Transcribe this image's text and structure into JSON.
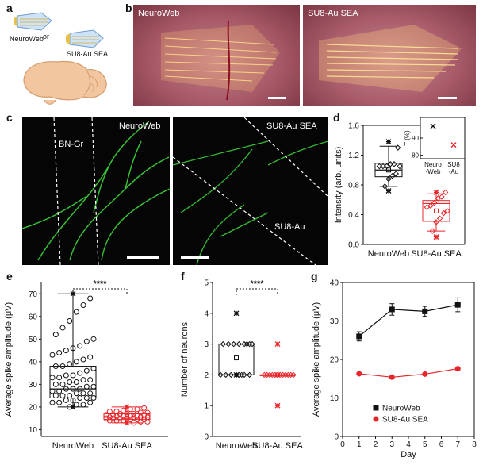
{
  "panel_labels": {
    "a": "a",
    "b": "b",
    "c": "c",
    "d": "d",
    "e": "e",
    "f": "f",
    "g": "g"
  },
  "panel_a": {
    "label_neuroweb": "NeuroWeb",
    "label_or": "or",
    "label_su8": "SU8-Au SEA"
  },
  "panel_b": {
    "left_label": "NeuroWeb",
    "right_label": "SU8-Au SEA"
  },
  "panel_c": {
    "left_label": "NeuroWeb",
    "right_label": "SU8-Au SEA",
    "bn_gr": "BN-Gr",
    "su8_au": "SU8-Au"
  },
  "colors": {
    "black": "#111111",
    "red": "#e8262a",
    "green": "#3ddc3a",
    "tissue": "#b86a78"
  },
  "chart_data": [
    {
      "id": "d",
      "type": "box",
      "ylabel": "Intensity (arb. units)",
      "categories": [
        "NeuroWeb",
        "SU8-Au SEA"
      ],
      "yticks": [
        "0.0",
        "0.4",
        "0.8",
        "1.2",
        "1.6"
      ],
      "ylim": [
        0,
        1.6
      ],
      "boxes": [
        {
          "name": "NeuroWeb",
          "color": "#111111",
          "q1": 0.91,
          "median": 1.0,
          "q3": 1.09,
          "mean": 1.0,
          "whisker_low": 0.78,
          "whisker_high": 1.32,
          "points": [
            1.38,
            1.3,
            1.08,
            1.08,
            1.05,
            1.05,
            1.05,
            1.05,
            0.95,
            0.92,
            0.88,
            0.78,
            0.72
          ]
        },
        {
          "name": "SU8-Au SEA",
          "color": "#e8262a",
          "q1": 0.31,
          "median": 0.55,
          "q3": 0.59,
          "mean": 0.45,
          "whisker_low": 0.18,
          "whisker_high": 0.68,
          "points": [
            0.7,
            0.7,
            0.64,
            0.62,
            0.56,
            0.52,
            0.5,
            0.45,
            0.42,
            0.35,
            0.3,
            0.18,
            0.1
          ]
        }
      ],
      "inset": {
        "ylabel": "T (%)",
        "yticks": [
          "80",
          "90"
        ],
        "ylim": [
          78,
          102
        ],
        "categories": [
          "Neuro\n-Web",
          "SU8\n-Au"
        ],
        "points": [
          {
            "category": "Neuro-Web",
            "value": 97,
            "color": "#111111"
          },
          {
            "category": "SU8-Au",
            "value": 86,
            "color": "#e8262a"
          }
        ]
      }
    },
    {
      "id": "e",
      "type": "box",
      "ylabel": "Average spike amplitude (μV)",
      "categories": [
        "NeuroWeb",
        "SU8-Au SEA"
      ],
      "yticks": [
        "10",
        "20",
        "30",
        "40",
        "50",
        "60",
        "70"
      ],
      "ylim": [
        7,
        75
      ],
      "significance": "****",
      "boxes": [
        {
          "name": "NeuroWeb",
          "color": "#111111",
          "q1": 24,
          "median": 28,
          "q3": 38,
          "mean": 30,
          "whisker_low": 20,
          "whisker_high": 70,
          "points": [
            70,
            68,
            65,
            62,
            58,
            55,
            52,
            50,
            49,
            47,
            46,
            45,
            44,
            43,
            42,
            41,
            40,
            39,
            38,
            38,
            37,
            36,
            35,
            34,
            34,
            33,
            33,
            32,
            32,
            31,
            31,
            30,
            30,
            29,
            29,
            28,
            28,
            28,
            27,
            27,
            26,
            26,
            26,
            25,
            25,
            25,
            24,
            24,
            24,
            23,
            23,
            22,
            22,
            22,
            21,
            21,
            20,
            20
          ]
        },
        {
          "name": "SU8-Au SEA",
          "color": "#e8262a",
          "q1": 14.5,
          "median": 15.5,
          "q3": 17,
          "mean": 15.8,
          "whisker_low": 13,
          "whisker_high": 20,
          "points": [
            20,
            19.5,
            19,
            19,
            18.5,
            18,
            18,
            17.5,
            17.5,
            17,
            17,
            17,
            16.5,
            16.5,
            16.5,
            16,
            16,
            16,
            16,
            15.5,
            15.5,
            15.5,
            15.5,
            15,
            15,
            15,
            15,
            14.5,
            14.5,
            14.5,
            14,
            14,
            14,
            13.5,
            13.5,
            13,
            13
          ]
        }
      ]
    },
    {
      "id": "f",
      "type": "box",
      "ylabel": "Number of neurons",
      "categories": [
        "NeuroWeb",
        "SU8-Au SEA"
      ],
      "yticks": [
        "0",
        "1",
        "2",
        "3",
        "4",
        "5"
      ],
      "ylim": [
        0,
        5
      ],
      "significance": "****",
      "boxes": [
        {
          "name": "NeuroWeb",
          "color": "#111111",
          "q1": 2,
          "median": 2,
          "q3": 3,
          "mean": 2.55,
          "whisker_low": 2,
          "whisker_high": 3,
          "points": [
            4,
            3,
            3,
            3,
            3,
            3,
            3,
            3,
            3,
            2,
            2,
            2,
            2,
            2,
            2,
            2,
            2,
            2
          ]
        },
        {
          "name": "SU8-Au SEA",
          "color": "#e8262a",
          "q1": 2,
          "median": 2,
          "q3": 2,
          "mean": 2,
          "whisker_low": 2,
          "whisker_high": 2,
          "points": [
            3,
            2,
            2,
            2,
            2,
            2,
            2,
            2,
            2,
            2,
            2,
            2,
            2,
            1
          ]
        }
      ]
    },
    {
      "id": "g",
      "type": "line",
      "xlabel": "Day",
      "ylabel": "Average spike amplitude (μV)",
      "xticks": [
        "0",
        "1",
        "2",
        "3",
        "4",
        "5",
        "6",
        "7",
        "8"
      ],
      "yticks": [
        "0",
        "10",
        "20",
        "30",
        "40"
      ],
      "xlim": [
        0,
        8
      ],
      "ylim": [
        0,
        40
      ],
      "legend_position": "bottom-center",
      "x": [
        1,
        3,
        5,
        7
      ],
      "series": [
        {
          "name": "NeuroWeb",
          "color": "#111111",
          "marker": "square",
          "values": [
            26,
            33,
            32.5,
            34.2
          ],
          "errors": [
            1.2,
            1.5,
            1.3,
            1.8
          ]
        },
        {
          "name": "SU8-Au SEA",
          "color": "#e8262a",
          "marker": "circle",
          "values": [
            16.3,
            15.4,
            16.2,
            17.6
          ],
          "errors": [
            0.3,
            0.3,
            0.3,
            0.4
          ]
        }
      ]
    }
  ]
}
